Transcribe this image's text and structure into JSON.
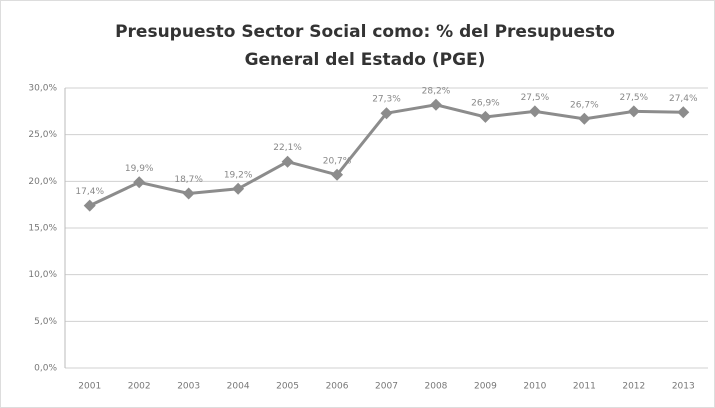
{
  "chart_data": {
    "type": "line",
    "title": [
      "Presupuesto Sector Social como:  % del Presupuesto",
      "General del Estado (PGE)"
    ],
    "categories": [
      "2001",
      "2002",
      "2003",
      "2004",
      "2005",
      "2006",
      "2007",
      "2008",
      "2009",
      "2010",
      "2011",
      "2012",
      "2013"
    ],
    "values": [
      17.4,
      19.9,
      18.7,
      19.2,
      22.1,
      20.7,
      27.3,
      28.2,
      26.9,
      27.5,
      26.7,
      27.5,
      27.4
    ],
    "value_labels": [
      "17,4%",
      "19,9%",
      "18,7%",
      "19,2%",
      "22,1%",
      "20,7%",
      "27,3%",
      "28,2%",
      "26,9%",
      "27,5%",
      "26,7%",
      "27,5%",
      "27,4%"
    ],
    "color": "#8c8c8c",
    "ylim": [
      0,
      30
    ],
    "yticks": [
      {
        "value": 0,
        "label": "0,0%"
      },
      {
        "value": 5,
        "label": "5,0%"
      },
      {
        "value": 10,
        "label": "10,0%"
      },
      {
        "value": 15,
        "label": "15,0%"
      },
      {
        "value": 20,
        "label": "20,0%"
      },
      {
        "value": 25,
        "label": "25,0%"
      },
      {
        "value": 30,
        "label": "30,0%"
      }
    ],
    "grid": true
  }
}
